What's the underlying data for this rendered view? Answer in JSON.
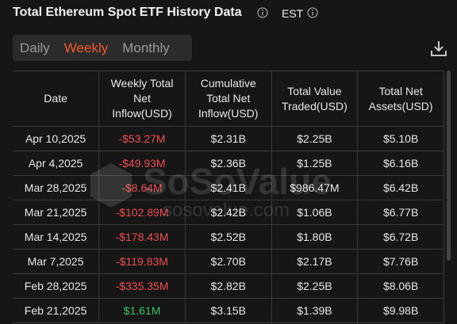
{
  "header": {
    "title": "Total Ethereum Spot ETF History Data",
    "timezone": "EST"
  },
  "tabs": {
    "items": [
      "Daily",
      "Weekly",
      "Monthly"
    ],
    "active": 1
  },
  "watermark": {
    "brand": "SoSoValue",
    "url": "sosovalue.com"
  },
  "table": {
    "columns": [
      "Date",
      "Weekly Total\nNet\nInflow(USD)",
      "Cumulative\nTotal Net\nInflow(USD)",
      "Total Value\nTraded(USD)",
      "Total Net\nAssets(USD)"
    ],
    "rows": [
      [
        "Apr 10,2025",
        "-$53.27M",
        "$2.31B",
        "$2.25B",
        "$5.10B"
      ],
      [
        "Apr 4,2025",
        "-$49.93M",
        "$2.36B",
        "$1.25B",
        "$6.16B"
      ],
      [
        "Mar 28,2025",
        "-$8.64M",
        "$2.41B",
        "$986.47M",
        "$6.42B"
      ],
      [
        "Mar 21,2025",
        "-$102.89M",
        "$2.42B",
        "$1.06B",
        "$6.77B"
      ],
      [
        "Mar 14,2025",
        "-$178.43M",
        "$2.52B",
        "$1.80B",
        "$6.72B"
      ],
      [
        "Mar 7,2025",
        "-$119.83M",
        "$2.70B",
        "$2.17B",
        "$7.76B"
      ],
      [
        "Feb 28,2025",
        "-$335.35M",
        "$2.82B",
        "$2.25B",
        "$8.06B"
      ],
      [
        "Feb 21,2025",
        "$1.61M",
        "$3.15B",
        "$1.39B",
        "$9.98B"
      ]
    ]
  }
}
